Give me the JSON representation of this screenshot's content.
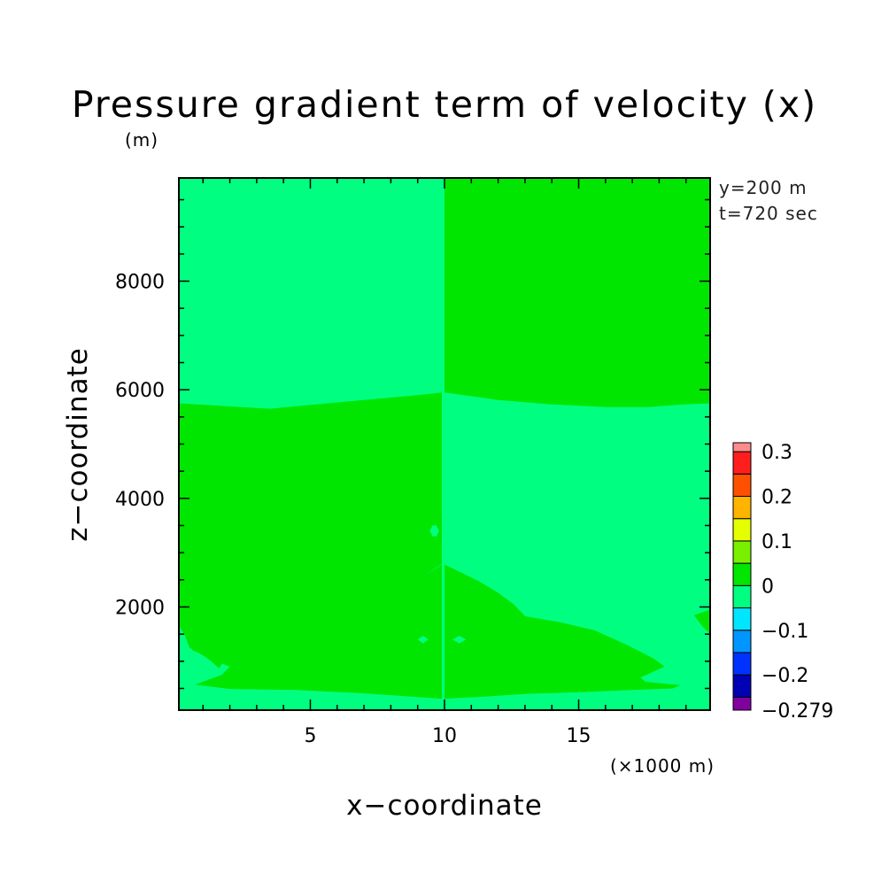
{
  "chart_data": {
    "type": "heatmap",
    "title": "Pressure gradient term of velocity (x)",
    "ylabel_unit": "(m)",
    "xlabel": "x−coordinate",
    "xlabel_unit": "(×1000 m)",
    "ylabel": "z−coordinate",
    "info_lines": [
      "y=200 m",
      "t=720 sec"
    ],
    "xlim": [
      0.1,
      19.9
    ],
    "ylim": [
      100,
      9900
    ],
    "x_ticks": [
      5,
      10,
      15
    ],
    "x_tick_labels": [
      "5",
      "10",
      "15"
    ],
    "y_ticks": [
      2000,
      4000,
      6000,
      8000
    ],
    "y_tick_labels": [
      "2000",
      "4000",
      "6000",
      "8000"
    ],
    "colorbar": {
      "levels": [
        -0.279,
        -0.25,
        -0.2,
        -0.15,
        -0.1,
        -0.05,
        0,
        0.05,
        0.1,
        0.15,
        0.2,
        0.25,
        0.3,
        0.32
      ],
      "colors": [
        "#8000a0",
        "#0000b4",
        "#0032ff",
        "#0096ff",
        "#00e6ff",
        "#00ff80",
        "#00e600",
        "#78f000",
        "#e6ff00",
        "#ffb400",
        "#ff5000",
        "#ff1e1e",
        "#ff8c8c"
      ],
      "labels": [
        "0.3",
        "0.2",
        "0.1",
        "0",
        "−0.1",
        "−0.2",
        "−0.279"
      ],
      "label_values": [
        0.3,
        0.2,
        0.1,
        0,
        -0.1,
        -0.2,
        -0.279
      ]
    },
    "field": {
      "background_color": "#00ff80",
      "background_range": "-0.05 to 0",
      "regions": [
        {
          "label": "0 to 0.05",
          "color": "#00e600",
          "points": [
            [
              10.0,
              9900
            ],
            [
              19.9,
              9900
            ],
            [
              19.9,
              5750
            ],
            [
              18.9,
              5730
            ],
            [
              17.6,
              5680
            ],
            [
              16.0,
              5680
            ],
            [
              14.0,
              5730
            ],
            [
              12.0,
              5810
            ],
            [
              10.0,
              5950
            ]
          ]
        },
        {
          "label": "0 to 0.05",
          "color": "#00e600",
          "points": [
            [
              0.1,
              5750
            ],
            [
              0.1,
              1650
            ],
            [
              0.3,
              1500
            ],
            [
              0.5,
              1250
            ],
            [
              1.2,
              1050
            ],
            [
              2.0,
              900
            ],
            [
              1.7,
              750
            ],
            [
              0.7,
              570
            ],
            [
              2.0,
              490
            ],
            [
              4.5,
              470
            ],
            [
              7.0,
              410
            ],
            [
              9.0,
              340
            ],
            [
              9.9,
              310
            ],
            [
              9.9,
              2780
            ],
            [
              9.4,
              2620
            ],
            [
              8.4,
              2490
            ],
            [
              7.2,
              2330
            ],
            [
              5.6,
              2180
            ],
            [
              4.0,
              2100
            ],
            [
              2.5,
              1950
            ],
            [
              1.5,
              1780
            ],
            [
              1.0,
              1620
            ],
            [
              0.6,
              1350
            ],
            [
              0.6,
              1200
            ],
            [
              0.9,
              1150
            ],
            [
              1.3,
              1000
            ],
            [
              1.6,
              870
            ],
            [
              1.7,
              950
            ],
            [
              1.8,
              1050
            ],
            [
              2.8,
              1300
            ],
            [
              3.8,
              1620
            ],
            [
              5.6,
              1900
            ],
            [
              7.1,
              2060
            ],
            [
              8.0,
              2300
            ],
            [
              9.1,
              2530
            ],
            [
              9.9,
              2790
            ],
            [
              9.9,
              5950
            ],
            [
              9.0,
              5900
            ],
            [
              7.0,
              5810
            ],
            [
              5.0,
              5720
            ],
            [
              3.5,
              5650
            ],
            [
              1.8,
              5700
            ],
            [
              0.1,
              5750
            ]
          ]
        },
        {
          "label": "0 to 0.05",
          "color": "#00e600",
          "points": [
            [
              10.0,
              310
            ],
            [
              11.5,
              350
            ],
            [
              13.0,
              400
            ],
            [
              15.0,
              430
            ],
            [
              17.0,
              470
            ],
            [
              18.5,
              500
            ],
            [
              18.8,
              560
            ],
            [
              17.5,
              620
            ],
            [
              17.3,
              700
            ],
            [
              18.2,
              900
            ],
            [
              17.8,
              1050
            ],
            [
              16.8,
              1300
            ],
            [
              15.6,
              1570
            ],
            [
              14.3,
              1720
            ],
            [
              13.0,
              1830
            ],
            [
              12.6,
              2040
            ],
            [
              12.0,
              2260
            ],
            [
              11.3,
              2470
            ],
            [
              10.6,
              2640
            ],
            [
              10.0,
              2780
            ]
          ]
        },
        {
          "label": "0 to 0.05",
          "color": "#00e600",
          "points": [
            [
              19.3,
              1850
            ],
            [
              19.9,
              1950
            ],
            [
              19.9,
              1500
            ],
            [
              19.6,
              1650
            ]
          ]
        },
        {
          "label": "-0.05 to 0",
          "color": "#00ff80",
          "points": [
            [
              9.45,
              3400
            ],
            [
              9.55,
              3300
            ],
            [
              9.7,
              3300
            ],
            [
              9.8,
              3400
            ],
            [
              9.7,
              3500
            ],
            [
              9.55,
              3500
            ]
          ]
        },
        {
          "label": "-0.05 to 0",
          "color": "#00ff80",
          "points": [
            [
              9.0,
              1400
            ],
            [
              9.2,
              1330
            ],
            [
              9.4,
              1400
            ],
            [
              9.2,
              1470
            ]
          ]
        },
        {
          "label": "-0.05 to 0",
          "color": "#00ff80",
          "points": [
            [
              10.3,
              1400
            ],
            [
              10.55,
              1330
            ],
            [
              10.8,
              1400
            ],
            [
              10.55,
              1470
            ]
          ]
        }
      ]
    }
  }
}
